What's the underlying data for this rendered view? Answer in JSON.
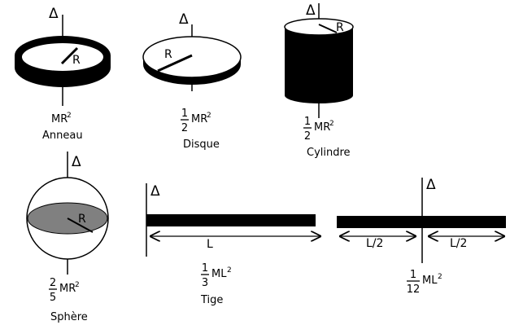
{
  "axis_symbol": "Δ",
  "radius_label": "R",
  "colors": {
    "ink": "#000000",
    "fill_white": "#ffffff",
    "sphere_section": "#808080"
  },
  "shapes": [
    {
      "id": "anneau",
      "name": "Anneau",
      "formula": {
        "fraction": null,
        "letters": "MR",
        "exponent": "2"
      }
    },
    {
      "id": "disque",
      "name": "Disque",
      "formula": {
        "fraction": {
          "num": "1",
          "den": "2"
        },
        "letters": "MR",
        "exponent": "2"
      }
    },
    {
      "id": "cylindre",
      "name": "Cylindre",
      "formula": {
        "fraction": {
          "num": "1",
          "den": "2"
        },
        "letters": "MR",
        "exponent": "2"
      }
    },
    {
      "id": "sphere",
      "name": "Sphère",
      "formula": {
        "fraction": {
          "num": "2",
          "den": "5"
        },
        "letters": "MR",
        "exponent": "2"
      }
    },
    {
      "id": "tige",
      "name": "Tige",
      "formula": {
        "fraction": {
          "num": "1",
          "den": "3"
        },
        "letters": "ML",
        "exponent": "2"
      }
    },
    {
      "id": "tige-centre",
      "name": "",
      "formula": {
        "fraction": {
          "num": "1",
          "den": "12"
        },
        "letters": "ML",
        "exponent": "2"
      }
    }
  ],
  "rod_length_label": "L",
  "half_length_label": "L/2"
}
